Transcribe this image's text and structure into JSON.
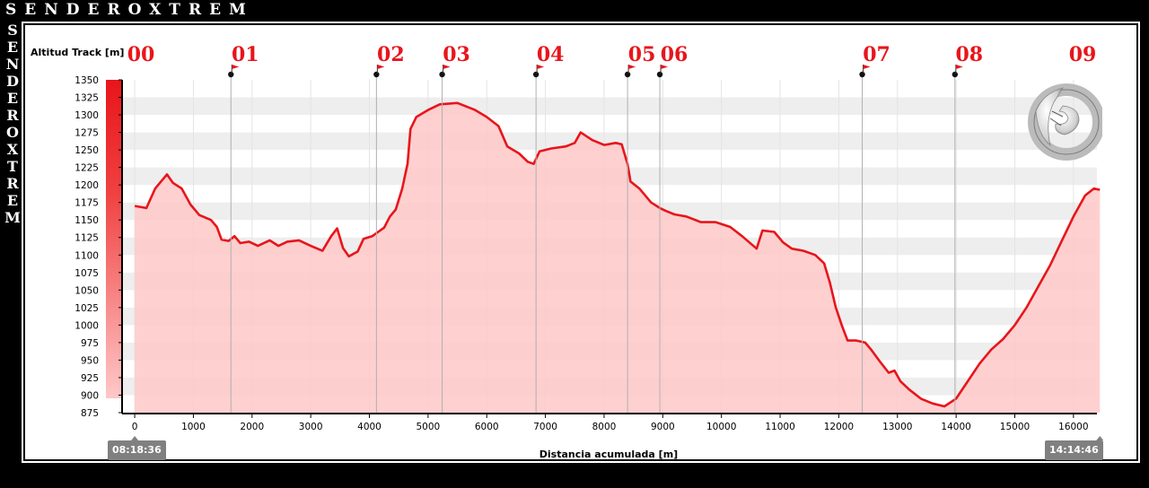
{
  "branding": {
    "name": "SENDEROXTREM",
    "vertical_letters": [
      "S",
      "E",
      "N",
      "D",
      "E",
      "R",
      "O",
      "X",
      "T",
      "R",
      "E",
      "M"
    ]
  },
  "chart_data": {
    "type": "area",
    "ylabel": "Altitud Track [m]",
    "xlabel": "Distancia acumulada [m]",
    "xlim": [
      -200,
      16400
    ],
    "ylim": [
      875,
      1350
    ],
    "x_ticks": [
      0,
      1000,
      2000,
      3000,
      4000,
      5000,
      6000,
      7000,
      8000,
      9000,
      10000,
      11000,
      12000,
      13000,
      14000,
      15000,
      16000
    ],
    "y_ticks": [
      875,
      900,
      925,
      950,
      975,
      1000,
      1025,
      1050,
      1075,
      1100,
      1125,
      1150,
      1175,
      1200,
      1225,
      1250,
      1275,
      1300,
      1325,
      1350
    ],
    "start_time": "08:18:36",
    "end_time": "14:14:46",
    "waypoints": [
      {
        "label": "00",
        "x": 0
      },
      {
        "label": "01",
        "x": 1640
      },
      {
        "label": "02",
        "x": 4120
      },
      {
        "label": "03",
        "x": 5240
      },
      {
        "label": "04",
        "x": 6840
      },
      {
        "label": "05",
        "x": 8400
      },
      {
        "label": "06",
        "x": 8950
      },
      {
        "label": "07",
        "x": 12400
      },
      {
        "label": "08",
        "x": 13980
      },
      {
        "label": "09",
        "x": 16450
      }
    ],
    "series": [
      {
        "color": "#e8151b",
        "fill": "#ffc8c8",
        "points": [
          [
            0,
            1170
          ],
          [
            200,
            1167
          ],
          [
            350,
            1195
          ],
          [
            550,
            1215
          ],
          [
            650,
            1203
          ],
          [
            800,
            1195
          ],
          [
            950,
            1172
          ],
          [
            1100,
            1157
          ],
          [
            1300,
            1150
          ],
          [
            1400,
            1140
          ],
          [
            1480,
            1122
          ],
          [
            1600,
            1120
          ],
          [
            1700,
            1127
          ],
          [
            1800,
            1117
          ],
          [
            1950,
            1119
          ],
          [
            2100,
            1113
          ],
          [
            2300,
            1121
          ],
          [
            2450,
            1113
          ],
          [
            2600,
            1119
          ],
          [
            2800,
            1121
          ],
          [
            3000,
            1113
          ],
          [
            3200,
            1106
          ],
          [
            3350,
            1127
          ],
          [
            3450,
            1138
          ],
          [
            3550,
            1110
          ],
          [
            3650,
            1098
          ],
          [
            3800,
            1105
          ],
          [
            3900,
            1123
          ],
          [
            4050,
            1127
          ],
          [
            4150,
            1133
          ],
          [
            4250,
            1139
          ],
          [
            4350,
            1155
          ],
          [
            4450,
            1165
          ],
          [
            4560,
            1195
          ],
          [
            4650,
            1230
          ],
          [
            4700,
            1280
          ],
          [
            4800,
            1297
          ],
          [
            5000,
            1307
          ],
          [
            5200,
            1315
          ],
          [
            5500,
            1317
          ],
          [
            5800,
            1307
          ],
          [
            6000,
            1297
          ],
          [
            6200,
            1284
          ],
          [
            6350,
            1255
          ],
          [
            6550,
            1245
          ],
          [
            6700,
            1233
          ],
          [
            6800,
            1230
          ],
          [
            6900,
            1248
          ],
          [
            7100,
            1252
          ],
          [
            7350,
            1255
          ],
          [
            7500,
            1260
          ],
          [
            7600,
            1275
          ],
          [
            7800,
            1264
          ],
          [
            8000,
            1257
          ],
          [
            8200,
            1260
          ],
          [
            8300,
            1258
          ],
          [
            8400,
            1230
          ],
          [
            8450,
            1205
          ],
          [
            8600,
            1195
          ],
          [
            8800,
            1175
          ],
          [
            8950,
            1167
          ],
          [
            9050,
            1163
          ],
          [
            9200,
            1158
          ],
          [
            9400,
            1155
          ],
          [
            9650,
            1147
          ],
          [
            9900,
            1147
          ],
          [
            10150,
            1140
          ],
          [
            10350,
            1127
          ],
          [
            10600,
            1109
          ],
          [
            10700,
            1135
          ],
          [
            10900,
            1133
          ],
          [
            11050,
            1118
          ],
          [
            11200,
            1109
          ],
          [
            11400,
            1106
          ],
          [
            11600,
            1100
          ],
          [
            11750,
            1088
          ],
          [
            11850,
            1060
          ],
          [
            11950,
            1025
          ],
          [
            12050,
            1000
          ],
          [
            12150,
            978
          ],
          [
            12300,
            978
          ],
          [
            12450,
            975
          ],
          [
            12550,
            965
          ],
          [
            12700,
            948
          ],
          [
            12850,
            932
          ],
          [
            12950,
            935
          ],
          [
            13050,
            920
          ],
          [
            13200,
            908
          ],
          [
            13400,
            895
          ],
          [
            13600,
            888
          ],
          [
            13800,
            884
          ],
          [
            14000,
            895
          ],
          [
            14200,
            920
          ],
          [
            14400,
            945
          ],
          [
            14600,
            965
          ],
          [
            14800,
            980
          ],
          [
            15000,
            1000
          ],
          [
            15200,
            1025
          ],
          [
            15400,
            1055
          ],
          [
            15600,
            1085
          ],
          [
            15800,
            1120
          ],
          [
            16000,
            1155
          ],
          [
            16200,
            1185
          ],
          [
            16350,
            1195
          ],
          [
            16450,
            1193
          ]
        ]
      }
    ]
  }
}
